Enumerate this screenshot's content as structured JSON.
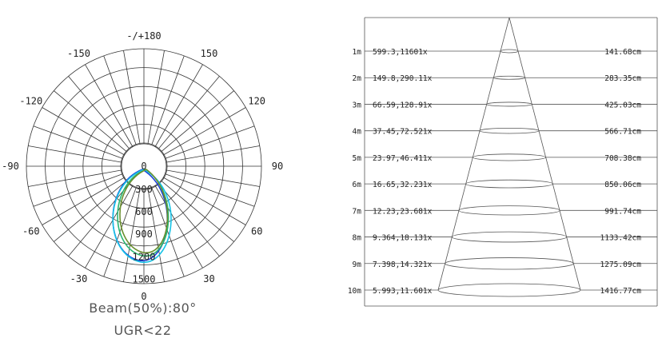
{
  "polar": {
    "angle_labels": [
      {
        "text": "-/+180",
        "deg": 180
      },
      {
        "text": "-150",
        "deg": -150
      },
      {
        "text": "150",
        "deg": 150
      },
      {
        "text": "-120",
        "deg": -120
      },
      {
        "text": "120",
        "deg": 120
      },
      {
        "text": "-90",
        "deg": -90
      },
      {
        "text": "90",
        "deg": 90
      },
      {
        "text": "-60",
        "deg": -60
      },
      {
        "text": "60",
        "deg": 60
      },
      {
        "text": "-30",
        "deg": -30
      },
      {
        "text": "30",
        "deg": 30
      },
      {
        "text": "0",
        "deg": 0
      }
    ],
    "radial_labels": [
      "0",
      "300",
      "600",
      "900",
      "1200",
      "1500"
    ],
    "curve_colors": [
      "#1a3fd8",
      "#2ab673",
      "#17c3e6",
      "#6a8f2e"
    ]
  },
  "captions": {
    "beam": "Beam(50%):80°",
    "ugr": "UGR<22"
  },
  "cone_rows": [
    {
      "distance": "1m",
      "values": "599.3,11601x",
      "diameter": "141.68cm"
    },
    {
      "distance": "2m",
      "values": "149.8,290.11x",
      "diameter": "283.35cm"
    },
    {
      "distance": "3m",
      "values": "66.59,128.91x",
      "diameter": "425.03cm"
    },
    {
      "distance": "4m",
      "values": "37.45,72.521x",
      "diameter": "566.71cm"
    },
    {
      "distance": "5m",
      "values": "23.97,46.411x",
      "diameter": "708.38cm"
    },
    {
      "distance": "6m",
      "values": "16.65,32.231x",
      "diameter": "850.06cm"
    },
    {
      "distance": "7m",
      "values": "12.23,23.681x",
      "diameter": "991.74cm"
    },
    {
      "distance": "8m",
      "values": "9.364,18.131x",
      "diameter": "1133.42cm"
    },
    {
      "distance": "9m",
      "values": "7.398,14.321x",
      "diameter": "1275.09cm"
    },
    {
      "distance": "10m",
      "values": "5.993,11.601x",
      "diameter": "1416.77cm"
    }
  ]
}
